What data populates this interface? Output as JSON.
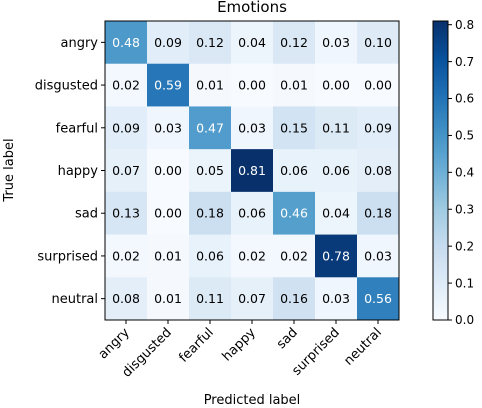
{
  "chart_data": {
    "type": "heatmap",
    "title": "Emotions",
    "xlabel": "Predicted label",
    "ylabel": "True label",
    "rows": [
      "angry",
      "disgusted",
      "fearful",
      "happy",
      "sad",
      "surprised",
      "neutral"
    ],
    "cols": [
      "angry",
      "disgusted",
      "fearful",
      "happy",
      "sad",
      "surprised",
      "neutral"
    ],
    "values": [
      [
        0.48,
        0.09,
        0.12,
        0.04,
        0.12,
        0.03,
        0.1
      ],
      [
        0.02,
        0.59,
        0.01,
        0.0,
        0.01,
        0.0,
        0.0
      ],
      [
        0.09,
        0.03,
        0.47,
        0.03,
        0.15,
        0.11,
        0.09
      ],
      [
        0.07,
        0.0,
        0.05,
        0.81,
        0.06,
        0.06,
        0.08
      ],
      [
        0.13,
        0.0,
        0.18,
        0.06,
        0.46,
        0.04,
        0.18
      ],
      [
        0.02,
        0.01,
        0.06,
        0.02,
        0.02,
        0.78,
        0.03
      ],
      [
        0.08,
        0.01,
        0.11,
        0.07,
        0.16,
        0.03,
        0.56
      ]
    ],
    "colormap": "Blues",
    "vmin": 0.0,
    "vmax": 0.81,
    "colorbar_ticks": [
      "0.0",
      "0.1",
      "0.2",
      "0.3",
      "0.4",
      "0.5",
      "0.6",
      "0.7",
      "0.8"
    ],
    "grid": false
  }
}
